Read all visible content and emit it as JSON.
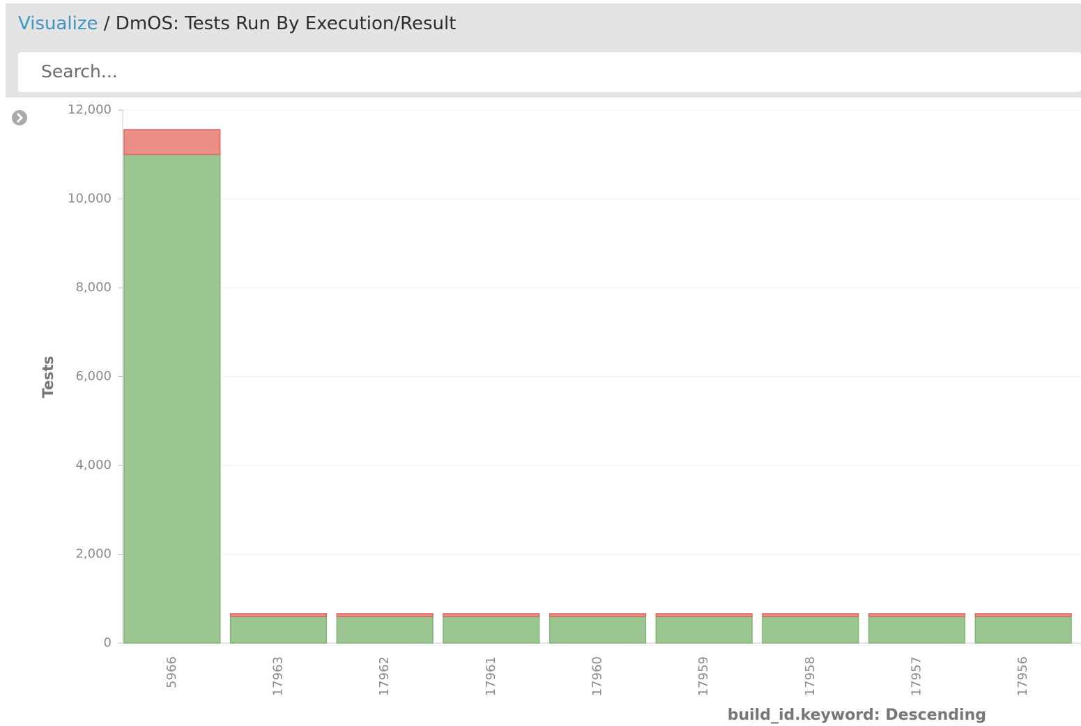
{
  "breadcrumb": {
    "link": "Visualize",
    "separator": "/",
    "title": "DmOS: Tests Run By Execution/Result"
  },
  "search": {
    "placeholder": "Search..."
  },
  "chart_data": {
    "type": "bar",
    "stacked": true,
    "y_label": "Tests",
    "x_label": "build_id.keyword: Descending",
    "categories": [
      "5966",
      "17963",
      "17962",
      "17961",
      "17960",
      "17959",
      "17958",
      "17957",
      "17956"
    ],
    "series": [
      {
        "color": "#9bc591",
        "values": [
          11000,
          600,
          600,
          600,
          600,
          600,
          600,
          600,
          600
        ]
      },
      {
        "color": "#ec8f86",
        "values": [
          560,
          60,
          60,
          60,
          60,
          60,
          60,
          60,
          60
        ]
      }
    ],
    "ylim": [
      0,
      12000
    ],
    "yticks": [
      0,
      {
        "value": 2000,
        "label": "2,000"
      },
      {
        "value": 4000,
        "label": "4,000"
      },
      {
        "value": 6000,
        "label": "6,000"
      },
      {
        "value": 8000,
        "label": "8,000"
      },
      {
        "value": 10000,
        "label": "10,000"
      },
      {
        "value": 12000,
        "label": "12,000"
      }
    ],
    "grid": true
  }
}
